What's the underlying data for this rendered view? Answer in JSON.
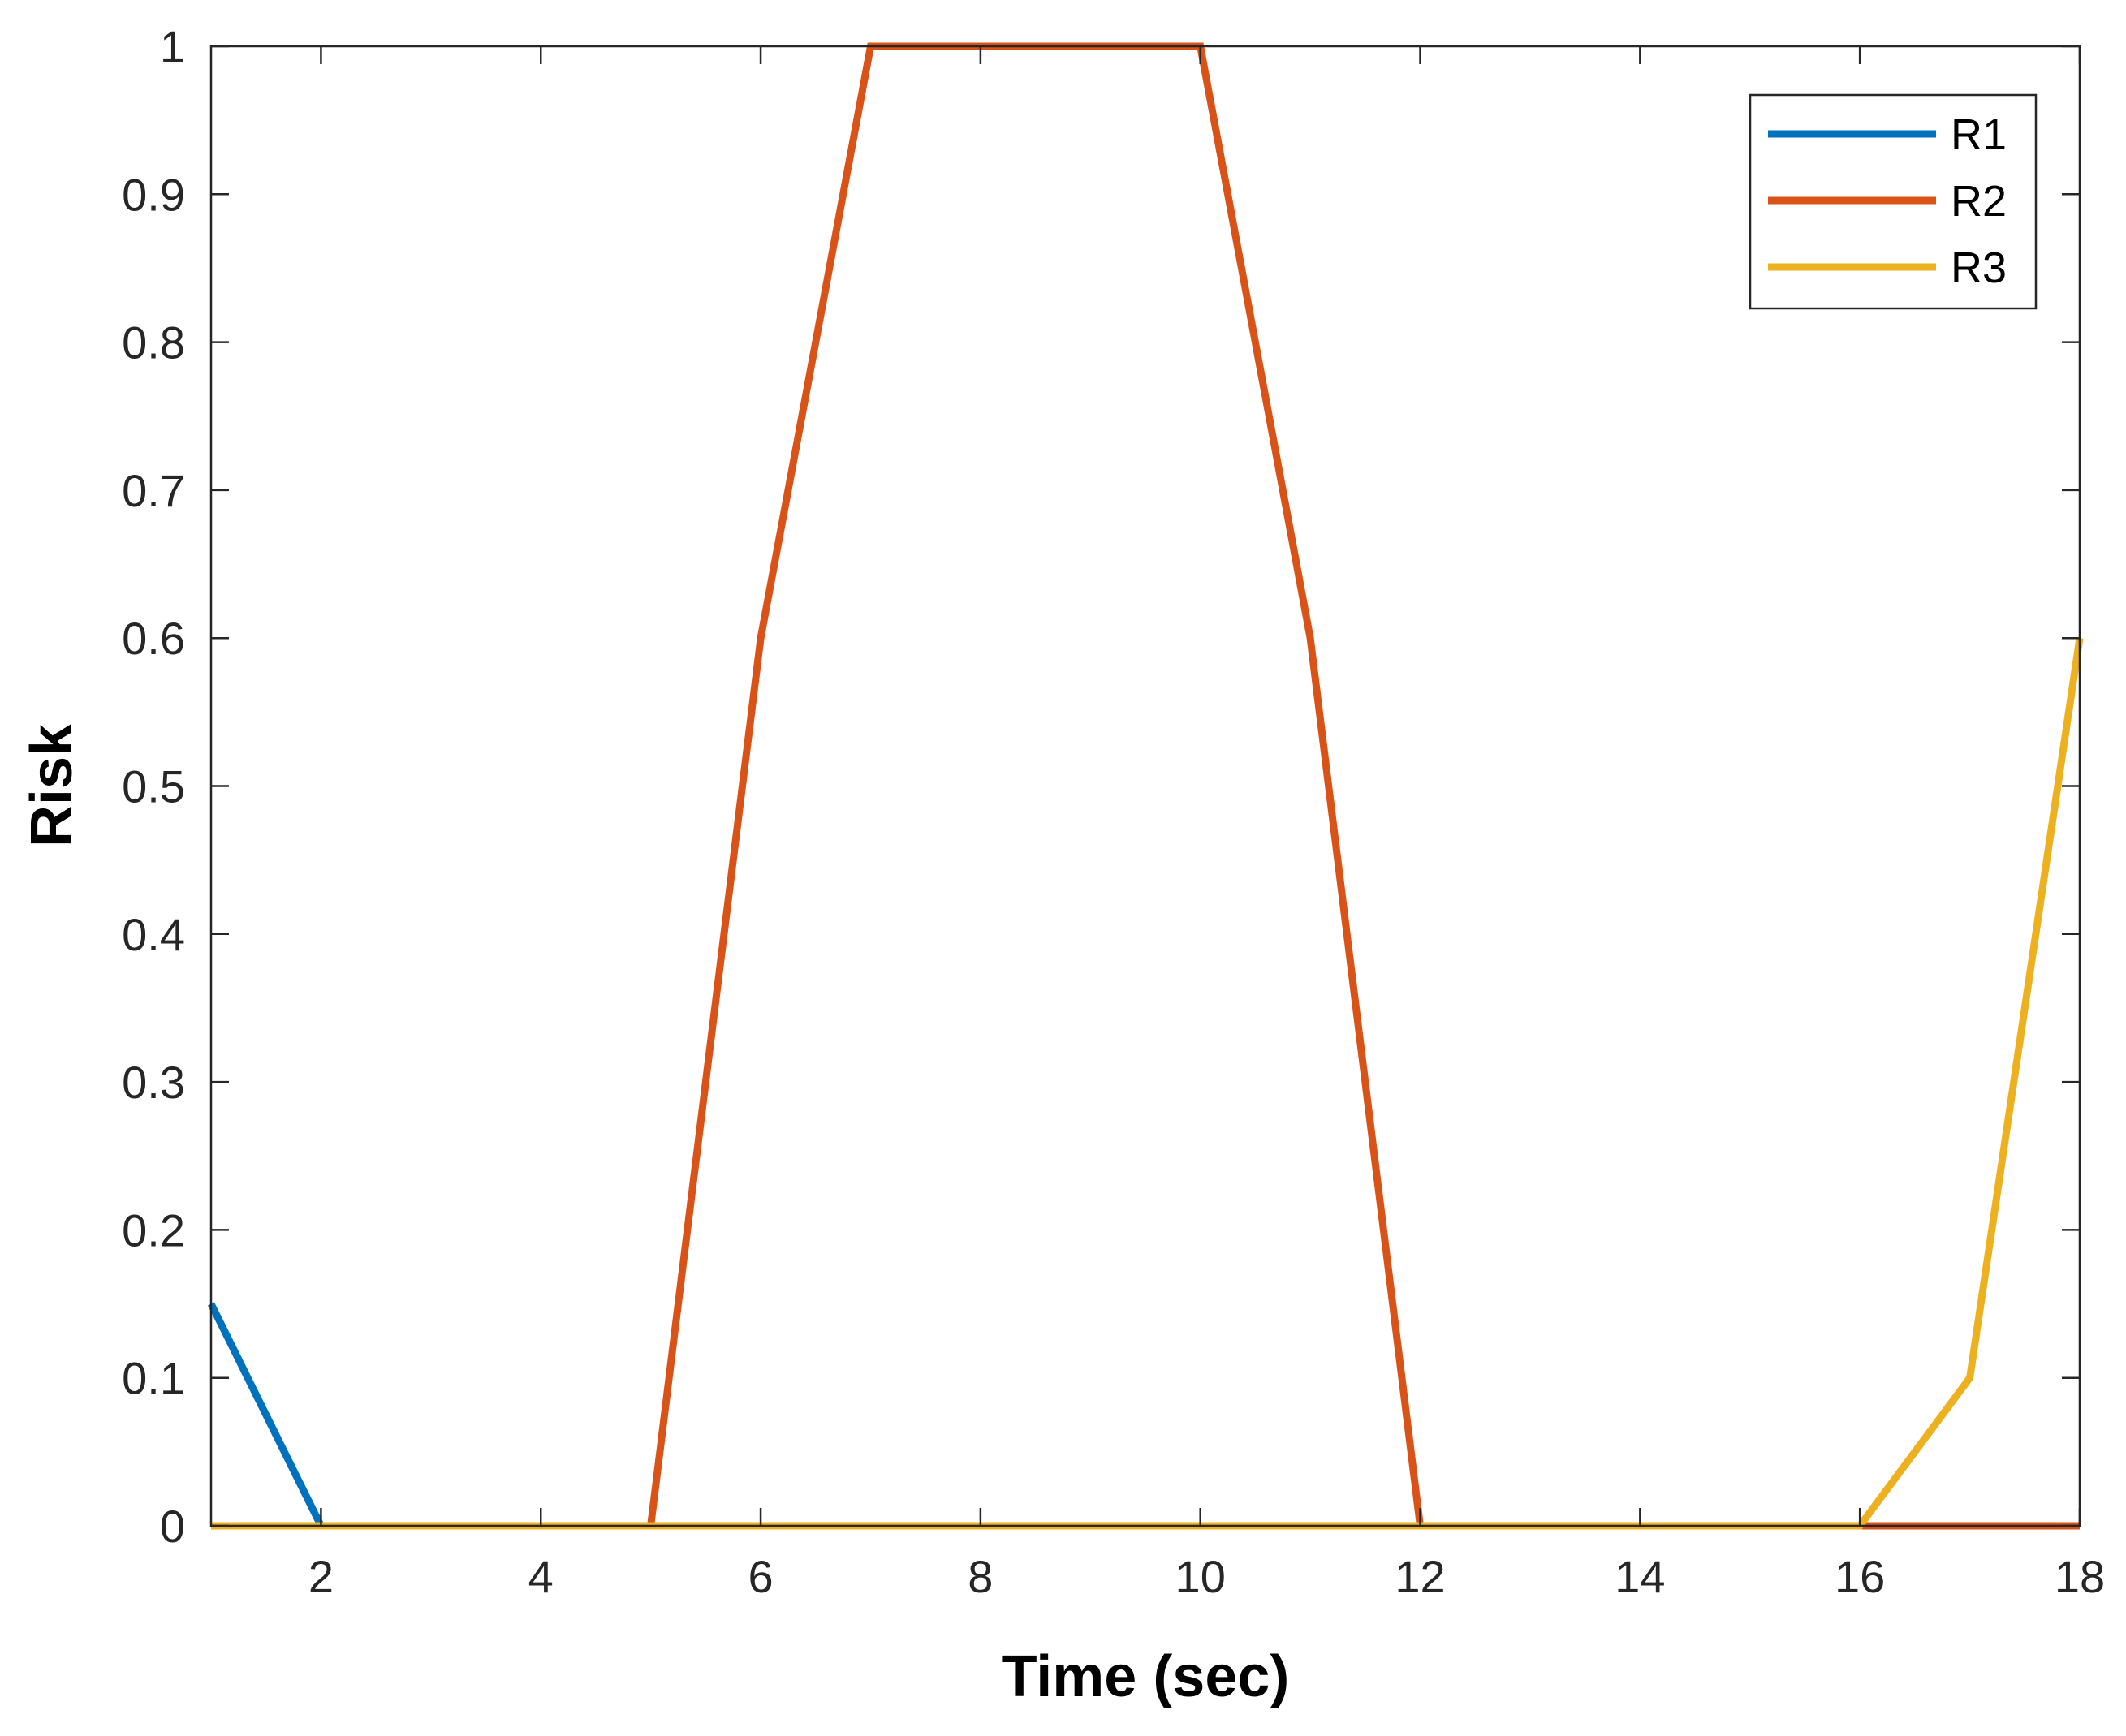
{
  "chart_data": {
    "type": "line",
    "title": "",
    "xlabel": "Time (sec)",
    "ylabel": "Risk",
    "xlim": [
      1,
      18
    ],
    "ylim": [
      0,
      1
    ],
    "xticks": [
      2,
      4,
      6,
      8,
      10,
      12,
      14,
      16,
      18
    ],
    "xtick_labels": [
      "2",
      "4",
      "6",
      "8",
      "10",
      "12",
      "14",
      "16",
      "18"
    ],
    "yticks": [
      0,
      0.1,
      0.2,
      0.3,
      0.4,
      0.5,
      0.6,
      0.7,
      0.8,
      0.9,
      1
    ],
    "ytick_labels": [
      "0",
      "0.1",
      "0.2",
      "0.3",
      "0.4",
      "0.5",
      "0.6",
      "0.7",
      "0.8",
      "0.9",
      "1"
    ],
    "grid": false,
    "legend": "top-right",
    "x": [
      1,
      2,
      3,
      4,
      5,
      6,
      7,
      8,
      9,
      10,
      11,
      12,
      13,
      14,
      15,
      16,
      17,
      18
    ],
    "series": [
      {
        "name": "R1",
        "color": "#0072BD",
        "values": [
          0.15,
          0,
          0,
          0,
          0,
          0,
          0,
          0,
          0,
          0,
          0,
          0,
          0,
          0,
          0,
          0,
          0,
          0
        ]
      },
      {
        "name": "R2",
        "color": "#D95319",
        "values": [
          0,
          0,
          0,
          0,
          0,
          0.6,
          1,
          1,
          1,
          1,
          0.6,
          0,
          0,
          0,
          0,
          0,
          0,
          0
        ]
      },
      {
        "name": "R3",
        "color": "#EDB120",
        "values": [
          0,
          0,
          0,
          0,
          0,
          0,
          0,
          0,
          0,
          0,
          0,
          0,
          0,
          0,
          0,
          0,
          0.1,
          0.6
        ]
      }
    ]
  }
}
